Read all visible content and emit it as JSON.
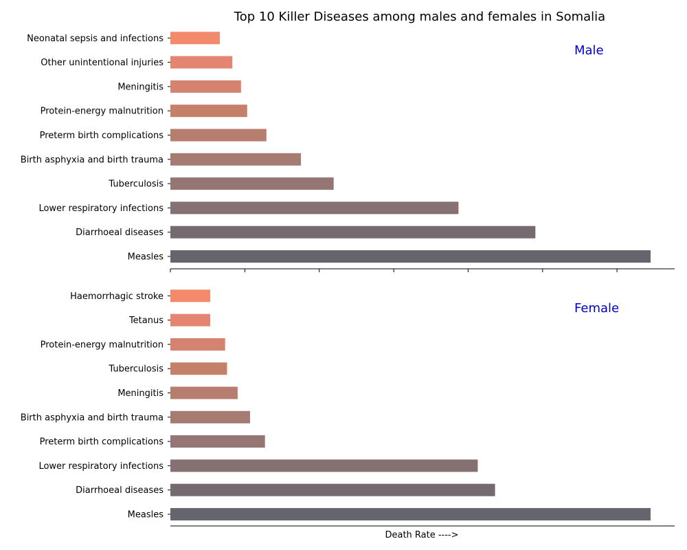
{
  "chart_data": {
    "type": "bar",
    "orientation": "horizontal",
    "title": "Top 10 Killer Diseases among males and females in Somalia",
    "xlabel": "Death Rate ---->",
    "x_tick_labels_shown": false,
    "grid": false,
    "label_color": "#0000cc",
    "bar_colors": [
      "#65656e",
      "#756a70",
      "#857072",
      "#957674",
      "#a57b72",
      "#b57e6e",
      "#c5806a",
      "#d58270",
      "#e38570",
      "#f38a6c"
    ],
    "panels": [
      {
        "label": "Male",
        "categories": [
          "Measles",
          "Diarrhoeal diseases",
          "Lower respiratory infections",
          "Tuberculosis",
          "Birth asphyxia and birth trauma",
          "Preterm birth complications",
          "Protein-energy malnutrition",
          "Meningitis",
          "Other unintentional injuries",
          "Neonatal sepsis and infections"
        ],
        "values": [
          100,
          76,
          60,
          34,
          27.2,
          20,
          16,
          14.7,
          12.9,
          10.3
        ],
        "xlim": [
          0,
          105
        ]
      },
      {
        "label": "Female",
        "categories": [
          "Measles",
          "Diarrhoeal diseases",
          "Lower respiratory infections",
          "Preterm birth complications",
          "Birth asphyxia and birth trauma",
          "Meningitis",
          "Tuberculosis",
          "Protein-energy malnutrition",
          "Tetanus",
          "Haemorrhagic stroke"
        ],
        "values": [
          100,
          67.6,
          64,
          19.7,
          16.6,
          14,
          11.8,
          11.4,
          8.3,
          8.3
        ],
        "xlim": [
          0,
          105
        ]
      }
    ]
  }
}
